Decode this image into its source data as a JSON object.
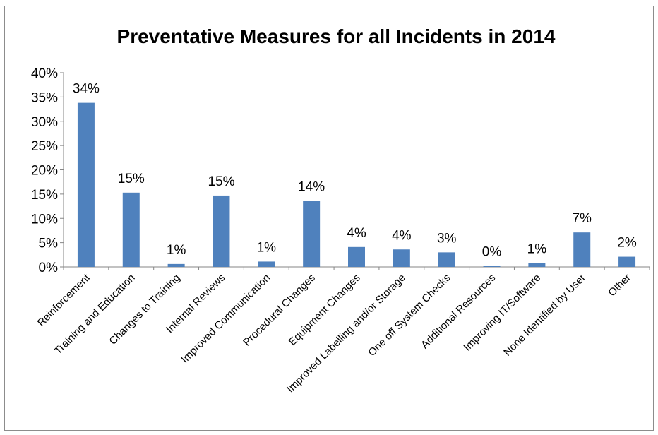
{
  "chart_data": {
    "type": "bar",
    "title": "Preventative Measures for all Incidents in 2014",
    "categories": [
      "Reinforcement",
      "Training and Education",
      "Changes to Training",
      "Internal Reviews",
      "Improved Communication",
      "Procedural Changes",
      "Equipment Changes",
      "Improved Labelling and/or Storage",
      "One off System Checks",
      "Additional Resources",
      "Improving IT/Software",
      "None Identified by User",
      "Other"
    ],
    "values": [
      33.8,
      15.3,
      0.6,
      14.7,
      1.1,
      13.6,
      4.1,
      3.6,
      3.0,
      0.2,
      0.8,
      7.1,
      2.1
    ],
    "data_labels": [
      "34%",
      "15%",
      "1%",
      "15%",
      "1%",
      "14%",
      "4%",
      "4%",
      "3%",
      "0%",
      "1%",
      "7%",
      "2%"
    ],
    "ylim": [
      0,
      40
    ],
    "yticks": [
      0,
      5,
      10,
      15,
      20,
      25,
      30,
      35,
      40
    ],
    "ytick_labels": [
      "0%",
      "5%",
      "10%",
      "15%",
      "20%",
      "25%",
      "30%",
      "35%",
      "40%"
    ],
    "xlabel": "",
    "ylabel": "",
    "grid": false,
    "legend": "none",
    "bar_color": "#4f81bd"
  }
}
